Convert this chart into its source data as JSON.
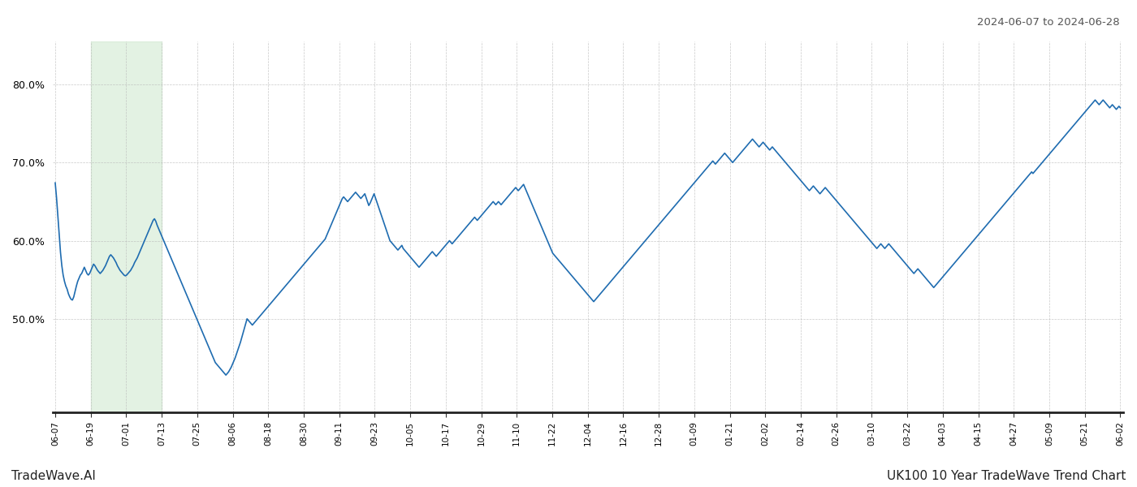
{
  "title_right": "2024-06-07 to 2024-06-28",
  "footer_left": "TradeWave.AI",
  "footer_right": "UK100 10 Year TradeWave Trend Chart",
  "line_color": "#1f6cb0",
  "line_width": 1.2,
  "highlight_color": "#c8e6c9",
  "highlight_alpha": 0.5,
  "background_color": "#ffffff",
  "grid_color": "#bbbbbb",
  "ylim_min": 0.38,
  "ylim_max": 0.855,
  "yticks": [
    0.5,
    0.6,
    0.7,
    0.8
  ],
  "x_labels": [
    "06-07",
    "06-19",
    "07-01",
    "07-13",
    "07-25",
    "08-06",
    "08-18",
    "08-30",
    "09-11",
    "09-23",
    "10-05",
    "10-17",
    "10-29",
    "11-10",
    "11-22",
    "12-04",
    "12-16",
    "12-28",
    "01-09",
    "01-21",
    "02-02",
    "02-14",
    "02-26",
    "03-10",
    "03-22",
    "04-03",
    "04-15",
    "04-27",
    "05-09",
    "05-21",
    "06-02"
  ],
  "values": [
    0.674,
    0.655,
    0.632,
    0.608,
    0.585,
    0.568,
    0.556,
    0.548,
    0.542,
    0.538,
    0.532,
    0.528,
    0.525,
    0.524,
    0.528,
    0.535,
    0.542,
    0.548,
    0.552,
    0.556,
    0.558,
    0.562,
    0.566,
    0.562,
    0.558,
    0.556,
    0.558,
    0.562,
    0.566,
    0.57,
    0.568,
    0.565,
    0.562,
    0.56,
    0.558,
    0.56,
    0.562,
    0.565,
    0.568,
    0.572,
    0.576,
    0.58,
    0.582,
    0.58,
    0.578,
    0.575,
    0.572,
    0.568,
    0.565,
    0.562,
    0.56,
    0.558,
    0.556,
    0.555,
    0.556,
    0.558,
    0.56,
    0.562,
    0.565,
    0.568,
    0.572,
    0.575,
    0.578,
    0.582,
    0.586,
    0.59,
    0.594,
    0.598,
    0.602,
    0.606,
    0.61,
    0.614,
    0.618,
    0.622,
    0.626,
    0.628,
    0.625,
    0.62,
    0.616,
    0.612,
    0.608,
    0.604,
    0.6,
    0.596,
    0.592,
    0.588,
    0.584,
    0.58,
    0.576,
    0.572,
    0.568,
    0.564,
    0.56,
    0.556,
    0.552,
    0.548,
    0.544,
    0.54,
    0.536,
    0.532,
    0.528,
    0.524,
    0.52,
    0.516,
    0.512,
    0.508,
    0.504,
    0.5,
    0.496,
    0.492,
    0.488,
    0.484,
    0.48,
    0.476,
    0.472,
    0.468,
    0.464,
    0.46,
    0.456,
    0.452,
    0.448,
    0.444,
    0.442,
    0.44,
    0.438,
    0.436,
    0.434,
    0.432,
    0.43,
    0.428,
    0.43,
    0.432,
    0.435,
    0.438,
    0.442,
    0.446,
    0.45,
    0.455,
    0.46,
    0.465,
    0.47,
    0.476,
    0.482,
    0.488,
    0.494,
    0.5,
    0.498,
    0.496,
    0.494,
    0.492,
    0.494,
    0.496,
    0.498,
    0.5,
    0.502,
    0.504,
    0.506,
    0.508,
    0.51,
    0.512,
    0.514,
    0.516,
    0.518,
    0.52,
    0.522,
    0.524,
    0.526,
    0.528,
    0.53,
    0.532,
    0.534,
    0.536,
    0.538,
    0.54,
    0.542,
    0.544,
    0.546,
    0.548,
    0.55,
    0.552,
    0.554,
    0.556,
    0.558,
    0.56,
    0.562,
    0.564,
    0.566,
    0.568,
    0.57,
    0.572,
    0.574,
    0.576,
    0.578,
    0.58,
    0.582,
    0.584,
    0.586,
    0.588,
    0.59,
    0.592,
    0.594,
    0.596,
    0.598,
    0.6,
    0.602,
    0.606,
    0.61,
    0.614,
    0.618,
    0.622,
    0.626,
    0.63,
    0.634,
    0.638,
    0.642,
    0.646,
    0.65,
    0.654,
    0.656,
    0.654,
    0.652,
    0.65,
    0.652,
    0.654,
    0.656,
    0.658,
    0.66,
    0.662,
    0.66,
    0.658,
    0.656,
    0.654,
    0.656,
    0.658,
    0.66,
    0.655,
    0.65,
    0.645,
    0.648,
    0.652,
    0.656,
    0.66,
    0.655,
    0.65,
    0.645,
    0.64,
    0.635,
    0.63,
    0.625,
    0.62,
    0.615,
    0.61,
    0.605,
    0.6,
    0.598,
    0.596,
    0.594,
    0.592,
    0.59,
    0.588,
    0.59,
    0.592,
    0.594,
    0.59,
    0.588,
    0.586,
    0.584,
    0.582,
    0.58,
    0.578,
    0.576,
    0.574,
    0.572,
    0.57,
    0.568,
    0.566,
    0.568,
    0.57,
    0.572,
    0.574,
    0.576,
    0.578,
    0.58,
    0.582,
    0.584,
    0.586,
    0.584,
    0.582,
    0.58,
    0.582,
    0.584,
    0.586,
    0.588,
    0.59,
    0.592,
    0.594,
    0.596,
    0.598,
    0.6,
    0.598,
    0.596,
    0.598,
    0.6,
    0.602,
    0.604,
    0.606,
    0.608,
    0.61,
    0.612,
    0.614,
    0.616,
    0.618,
    0.62,
    0.622,
    0.624,
    0.626,
    0.628,
    0.63,
    0.628,
    0.626,
    0.628,
    0.63,
    0.632,
    0.634,
    0.636,
    0.638,
    0.64,
    0.642,
    0.644,
    0.646,
    0.648,
    0.65,
    0.648,
    0.646,
    0.648,
    0.65,
    0.648,
    0.646,
    0.648,
    0.65,
    0.652,
    0.654,
    0.656,
    0.658,
    0.66,
    0.662,
    0.664,
    0.666,
    0.668,
    0.666,
    0.664,
    0.666,
    0.668,
    0.67,
    0.672,
    0.668,
    0.664,
    0.66,
    0.656,
    0.652,
    0.648,
    0.644,
    0.64,
    0.636,
    0.632,
    0.628,
    0.624,
    0.62,
    0.616,
    0.612,
    0.608,
    0.604,
    0.6,
    0.596,
    0.592,
    0.588,
    0.584,
    0.582,
    0.58,
    0.578,
    0.576,
    0.574,
    0.572,
    0.57,
    0.568,
    0.566,
    0.564,
    0.562,
    0.56,
    0.558,
    0.556,
    0.554,
    0.552,
    0.55,
    0.548,
    0.546,
    0.544,
    0.542,
    0.54,
    0.538,
    0.536,
    0.534,
    0.532,
    0.53,
    0.528,
    0.526,
    0.524,
    0.522,
    0.524,
    0.526,
    0.528,
    0.53,
    0.532,
    0.534,
    0.536,
    0.538,
    0.54,
    0.542,
    0.544,
    0.546,
    0.548,
    0.55,
    0.552,
    0.554,
    0.556,
    0.558,
    0.56,
    0.562,
    0.564,
    0.566,
    0.568,
    0.57,
    0.572,
    0.574,
    0.576,
    0.578,
    0.58,
    0.582,
    0.584,
    0.586,
    0.588,
    0.59,
    0.592,
    0.594,
    0.596,
    0.598,
    0.6,
    0.602,
    0.604,
    0.606,
    0.608,
    0.61,
    0.612,
    0.614,
    0.616,
    0.618,
    0.62,
    0.622,
    0.624,
    0.626,
    0.628,
    0.63,
    0.632,
    0.634,
    0.636,
    0.638,
    0.64,
    0.642,
    0.644,
    0.646,
    0.648,
    0.65,
    0.652,
    0.654,
    0.656,
    0.658,
    0.66,
    0.662,
    0.664,
    0.666,
    0.668,
    0.67,
    0.672,
    0.674,
    0.676,
    0.678,
    0.68,
    0.682,
    0.684,
    0.686,
    0.688,
    0.69,
    0.692,
    0.694,
    0.696,
    0.698,
    0.7,
    0.702,
    0.7,
    0.698,
    0.7,
    0.702,
    0.704,
    0.706,
    0.708,
    0.71,
    0.712,
    0.71,
    0.708,
    0.706,
    0.704,
    0.702,
    0.7,
    0.702,
    0.704,
    0.706,
    0.708,
    0.71,
    0.712,
    0.714,
    0.716,
    0.718,
    0.72,
    0.722,
    0.724,
    0.726,
    0.728,
    0.73,
    0.728,
    0.726,
    0.724,
    0.722,
    0.72,
    0.722,
    0.724,
    0.726,
    0.724,
    0.722,
    0.72,
    0.718,
    0.716,
    0.718,
    0.72,
    0.718,
    0.716,
    0.714,
    0.712,
    0.71,
    0.708,
    0.706,
    0.704,
    0.702,
    0.7,
    0.698,
    0.696,
    0.694,
    0.692,
    0.69,
    0.688,
    0.686,
    0.684,
    0.682,
    0.68,
    0.678,
    0.676,
    0.674,
    0.672,
    0.67,
    0.668,
    0.666,
    0.664,
    0.666,
    0.668,
    0.67,
    0.668,
    0.666,
    0.664,
    0.662,
    0.66,
    0.662,
    0.664,
    0.666,
    0.668,
    0.666,
    0.664,
    0.662,
    0.66,
    0.658,
    0.656,
    0.654,
    0.652,
    0.65,
    0.648,
    0.646,
    0.644,
    0.642,
    0.64,
    0.638,
    0.636,
    0.634,
    0.632,
    0.63,
    0.628,
    0.626,
    0.624,
    0.622,
    0.62,
    0.618,
    0.616,
    0.614,
    0.612,
    0.61,
    0.608,
    0.606,
    0.604,
    0.602,
    0.6,
    0.598,
    0.596,
    0.594,
    0.592,
    0.59,
    0.592,
    0.594,
    0.596,
    0.594,
    0.592,
    0.59,
    0.592,
    0.594,
    0.596,
    0.594,
    0.592,
    0.59,
    0.588,
    0.586,
    0.584,
    0.582,
    0.58,
    0.578,
    0.576,
    0.574,
    0.572,
    0.57,
    0.568,
    0.566,
    0.564,
    0.562,
    0.56,
    0.558,
    0.56,
    0.562,
    0.564,
    0.562,
    0.56,
    0.558,
    0.556,
    0.554,
    0.552,
    0.55,
    0.548,
    0.546,
    0.544,
    0.542,
    0.54,
    0.542,
    0.544,
    0.546,
    0.548,
    0.55,
    0.552,
    0.554,
    0.556,
    0.558,
    0.56,
    0.562,
    0.564,
    0.566,
    0.568,
    0.57,
    0.572,
    0.574,
    0.576,
    0.578,
    0.58,
    0.582,
    0.584,
    0.586,
    0.588,
    0.59,
    0.592,
    0.594,
    0.596,
    0.598,
    0.6,
    0.602,
    0.604,
    0.606,
    0.608,
    0.61,
    0.612,
    0.614,
    0.616,
    0.618,
    0.62,
    0.622,
    0.624,
    0.626,
    0.628,
    0.63,
    0.632,
    0.634,
    0.636,
    0.638,
    0.64,
    0.642,
    0.644,
    0.646,
    0.648,
    0.65,
    0.652,
    0.654,
    0.656,
    0.658,
    0.66,
    0.662,
    0.664,
    0.666,
    0.668,
    0.67,
    0.672,
    0.674,
    0.676,
    0.678,
    0.68,
    0.682,
    0.684,
    0.686,
    0.688,
    0.686,
    0.688,
    0.69,
    0.692,
    0.694,
    0.696,
    0.698,
    0.7,
    0.702,
    0.704,
    0.706,
    0.708,
    0.71,
    0.712,
    0.714,
    0.716,
    0.718,
    0.72,
    0.722,
    0.724,
    0.726,
    0.728,
    0.73,
    0.732,
    0.734,
    0.736,
    0.738,
    0.74,
    0.742,
    0.744,
    0.746,
    0.748,
    0.75,
    0.752,
    0.754,
    0.756,
    0.758,
    0.76,
    0.762,
    0.764,
    0.766,
    0.768,
    0.77,
    0.772,
    0.774,
    0.776,
    0.778,
    0.78,
    0.778,
    0.776,
    0.774,
    0.776,
    0.778,
    0.78,
    0.778,
    0.776,
    0.774,
    0.772,
    0.77,
    0.772,
    0.774,
    0.772,
    0.77,
    0.768,
    0.77,
    0.772,
    0.77
  ]
}
